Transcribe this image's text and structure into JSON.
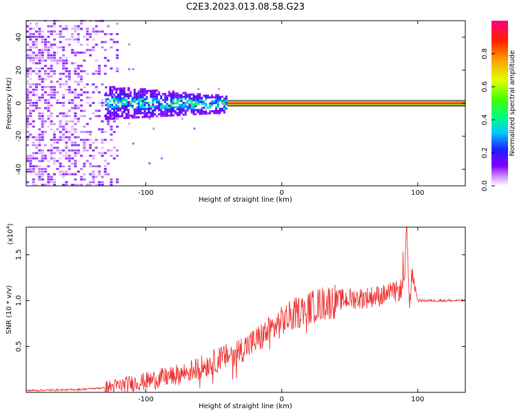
{
  "title": "C2E3.2023.013.08.58.G23",
  "chart_data": [
    {
      "type": "heatmap",
      "xlabel": "Height of straight line (km)",
      "ylabel": "Frequency (Hz)",
      "xlim": [
        -188,
        135
      ],
      "ylim": [
        -50,
        50
      ],
      "xticks": [
        -100,
        0,
        100
      ],
      "yticks": [
        -40,
        -20,
        0,
        20,
        40
      ],
      "colorbar": {
        "label": "Normalized spectral amplitude",
        "range": [
          0,
          1
        ],
        "ticks": [
          0.0,
          0.2,
          0.4,
          0.6,
          0.8
        ],
        "colors": [
          "#ffffff",
          "#cc88ff",
          "#8000ff",
          "#2020ff",
          "#00c8ff",
          "#00ff80",
          "#40ff00",
          "#e0ff00",
          "#ffa000",
          "#ff2000",
          "#ff0080"
        ]
      },
      "features": {
        "noise_region_x": [
          -188,
          -120
        ],
        "broad_blob_x": [
          -130,
          -40
        ],
        "broad_blob_freq_halfwidth": 10,
        "narrow_line_x": [
          -40,
          135
        ],
        "narrow_line_freq": 0,
        "tone_offset_at_minus40km": -3
      }
    },
    {
      "type": "line",
      "xlabel": "Height of straight line (km)",
      "ylabel": "SNR (10 * v/v)",
      "yscale_label": "(x10",
      "yscale_exp": "4",
      "xlim": [
        -188,
        135
      ],
      "ylim": [
        0,
        1.8
      ],
      "xticks": [
        -100,
        0,
        100
      ],
      "yticks": [
        0.5,
        1.0,
        1.5
      ],
      "color": "#ee3333",
      "series": [
        {
          "x": [
            -188,
            -150,
            -130,
            -120,
            -110,
            -100,
            -90,
            -80,
            -70,
            -60,
            -50,
            -40,
            -30,
            -20,
            -10,
            0,
            10,
            20,
            30,
            40,
            50,
            60,
            70,
            75,
            80,
            85,
            90,
            92,
            94,
            96,
            100,
            110,
            120,
            135
          ],
          "values": [
            0.02,
            0.03,
            0.05,
            0.07,
            0.1,
            0.12,
            0.15,
            0.18,
            0.22,
            0.27,
            0.33,
            0.4,
            0.47,
            0.55,
            0.66,
            0.77,
            0.86,
            0.92,
            0.97,
            1.0,
            1.02,
            1.03,
            1.05,
            1.06,
            1.08,
            1.1,
            1.15,
            1.8,
            0.9,
            1.35,
            1.0,
            1.0,
            1.0,
            1.0
          ]
        }
      ]
    }
  ]
}
